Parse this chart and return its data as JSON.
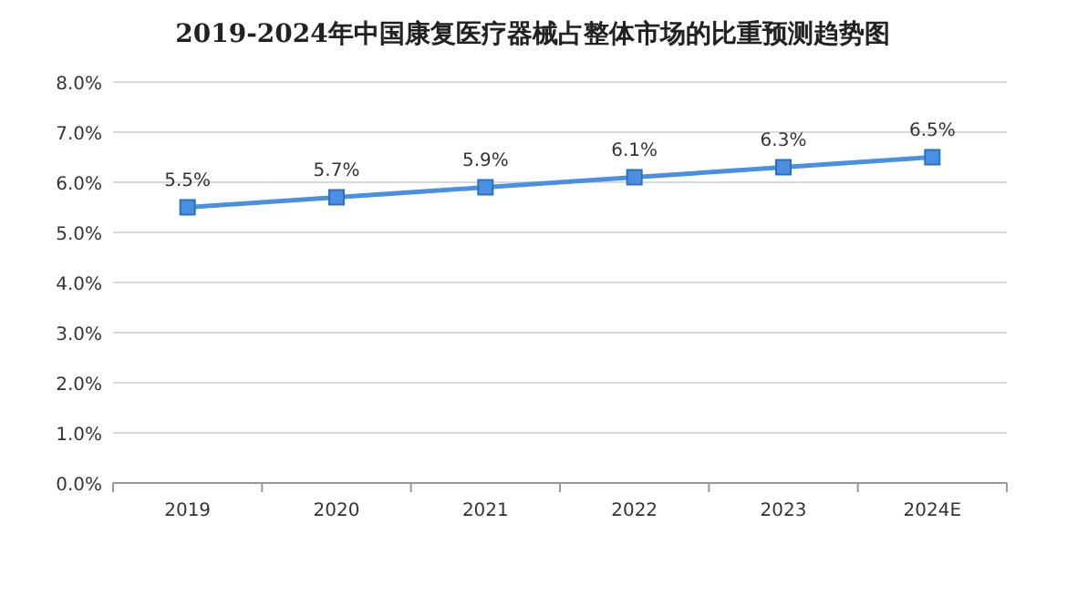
{
  "chart_data": {
    "type": "line",
    "title": "2019-2024年中国康复医疗器械占整体市场的比重预测趋势图",
    "categories": [
      "2019",
      "2020",
      "2021",
      "2022",
      "2023",
      "2024E"
    ],
    "series": [
      {
        "color": "#4a90e2",
        "values": [
          5.5,
          5.7,
          5.9,
          6.1,
          6.3,
          6.5
        ],
        "value_labels": [
          "5.5%",
          "5.7%",
          "5.9%",
          "6.1%",
          "6.3%",
          "6.5%"
        ]
      }
    ],
    "ylim": [
      0,
      8
    ],
    "yticks": [
      {
        "value": 0,
        "label": "0.0%"
      },
      {
        "value": 1,
        "label": "1.0%"
      },
      {
        "value": 2,
        "label": "2.0%"
      },
      {
        "value": 3,
        "label": "3.0%"
      },
      {
        "value": 4,
        "label": "4.0%"
      },
      {
        "value": 5,
        "label": "5.0%"
      },
      {
        "value": 6,
        "label": "6.0%"
      },
      {
        "value": 7,
        "label": "7.0%"
      },
      {
        "value": 8,
        "label": "8.0%"
      }
    ],
    "grid": "y",
    "marker": "square",
    "line_style": "solid"
  }
}
